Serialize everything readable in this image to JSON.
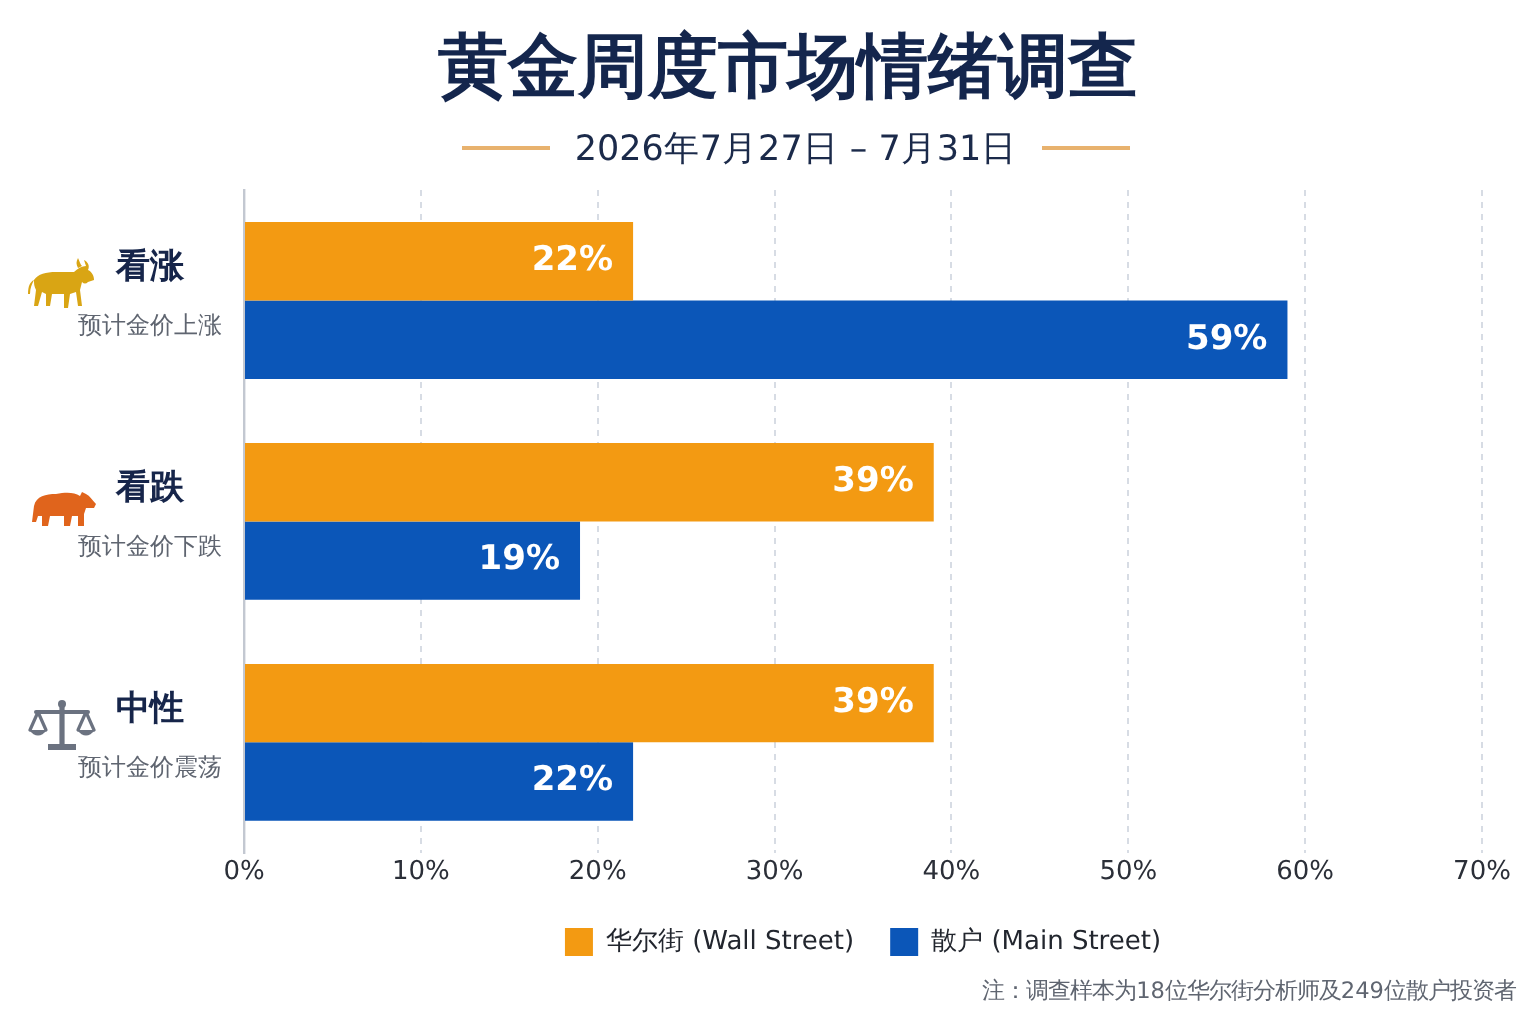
{
  "chart_data": {
    "type": "bar",
    "orientation": "horizontal",
    "title": "黄金周度市场情绪调查",
    "subtitle": "2026年7月27日 – 7月31日",
    "categories": [
      "看涨",
      "看跌",
      "中性"
    ],
    "series": [
      {
        "name": "华尔街 (Wall Street)",
        "color": "#f39a12",
        "values": [
          22,
          39,
          39
        ],
        "value_labels": [
          "22%",
          "39%",
          "39%"
        ]
      },
      {
        "name": "散户 (Main Street)",
        "color": "#0b56b8",
        "values": [
          59,
          19,
          22
        ],
        "value_labels": [
          "59%",
          "19%",
          "22%"
        ]
      }
    ],
    "xlim": [
      0,
      70
    ],
    "xticks": [
      {
        "value": 0,
        "label": "0%"
      },
      {
        "value": 10,
        "label": "10%"
      },
      {
        "value": 20,
        "label": "20%"
      },
      {
        "value": 30,
        "label": "30%"
      },
      {
        "value": 40,
        "label": "40%"
      },
      {
        "value": 50,
        "label": "50%"
      },
      {
        "value": 60,
        "label": "60%"
      },
      {
        "value": 70,
        "label": "70%"
      }
    ],
    "grid": "x",
    "legend": "bottom",
    "annotations": [
      "预计金价上涨",
      "预计金价下跌",
      "预计金价震荡",
      "注：调查样本为18位华尔街分析师及249位散户投资者"
    ]
  }
}
